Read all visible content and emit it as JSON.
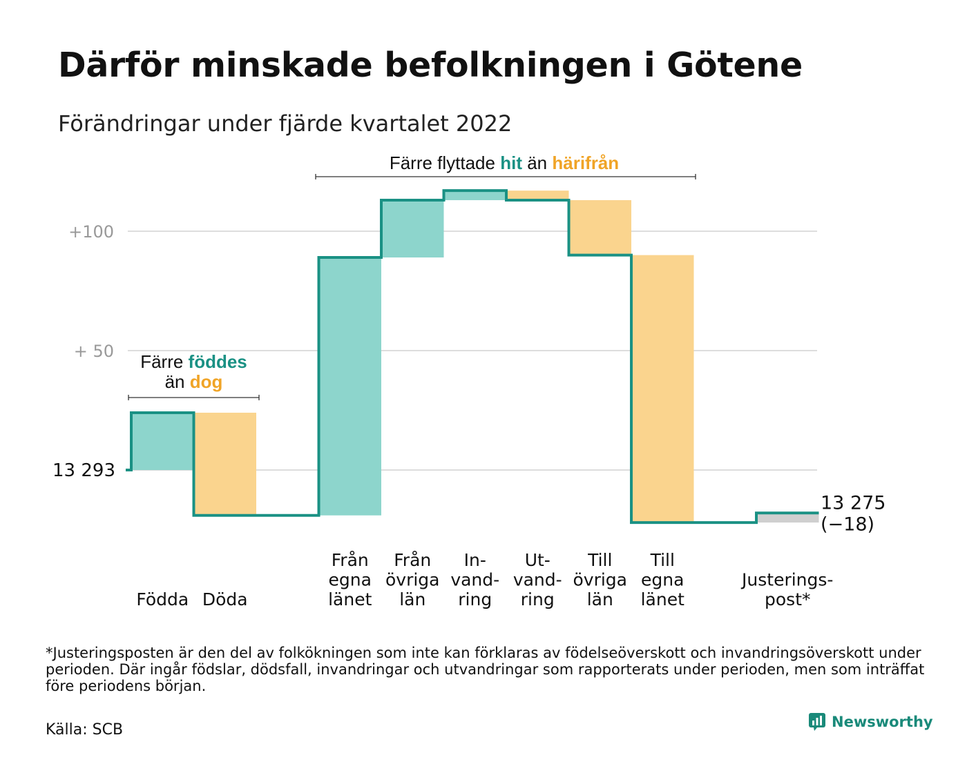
{
  "title": "Därför minskade befolkningen i Götene",
  "subtitle": "Förändringar under fjärde kvartalet 2022",
  "chart_data": {
    "type": "waterfall",
    "start_value": 13293,
    "start_label": "13 293",
    "end_value": 13275,
    "end_label": "13 275",
    "change_label": "(−18)",
    "y_ticks": [
      {
        "value": 100,
        "label": "+100"
      },
      {
        "value": 50,
        "label": "+ 50"
      }
    ],
    "steps": [
      {
        "id": "fodda",
        "label_lines": [
          "Födda"
        ],
        "value": 24,
        "kind": "in"
      },
      {
        "id": "doda",
        "label_lines": [
          "Döda"
        ],
        "value": -43,
        "kind": "out"
      },
      {
        "id": "gap",
        "label_lines": [],
        "value": 0,
        "kind": "none"
      },
      {
        "id": "fran-egna",
        "label_lines": [
          "Från",
          "egna",
          "länet"
        ],
        "value": 108,
        "kind": "in"
      },
      {
        "id": "fran-ovriga",
        "label_lines": [
          "Från",
          "övriga",
          "län"
        ],
        "value": 24,
        "kind": "in"
      },
      {
        "id": "invandring",
        "label_lines": [
          "In-",
          "vand-",
          "ring"
        ],
        "value": 4,
        "kind": "in"
      },
      {
        "id": "utvandring",
        "label_lines": [
          "Ut-",
          "vand-",
          "ring"
        ],
        "value": -4,
        "kind": "out"
      },
      {
        "id": "till-ovriga",
        "label_lines": [
          "Till",
          "övriga",
          "län"
        ],
        "value": -23,
        "kind": "out"
      },
      {
        "id": "till-egna",
        "label_lines": [
          "Till",
          "egna",
          "länet"
        ],
        "value": -112,
        "kind": "out"
      },
      {
        "id": "gap2",
        "label_lines": [],
        "value": 0,
        "kind": "none"
      },
      {
        "id": "justering",
        "label_lines": [
          "Justerings-",
          "post*"
        ],
        "value": 4,
        "kind": "adjust"
      }
    ],
    "annotations": {
      "births": {
        "prefix": "Färre",
        "highlight_in": "föddes",
        "mid": "än",
        "highlight_out": "dog"
      },
      "migration": {
        "prefix": "Färre flyttade",
        "highlight_in": "hit",
        "mid": "än",
        "highlight_out": "härifrån"
      }
    },
    "colors": {
      "in": "#8dd5cc",
      "out": "#fad48e",
      "adjust": "#cfcfcf",
      "line": "#1a9184",
      "in_text": "#1a9184",
      "out_text": "#f0a427",
      "grid": "#dddddd",
      "tick_text": "#999999"
    }
  },
  "footnote": "*Justeringsposten är den del av folkökningen som inte kan förklaras av födelseöverskott och invandringsöverskott under perioden. Där ingår födslar, dödsfall, invandringar och utvandringar som rapporterats under perioden, men som inträffat före periodens början.",
  "source": "Källa: SCB",
  "brand": {
    "name": "Newsworthy",
    "icon": "newsworthy-logo-icon"
  }
}
